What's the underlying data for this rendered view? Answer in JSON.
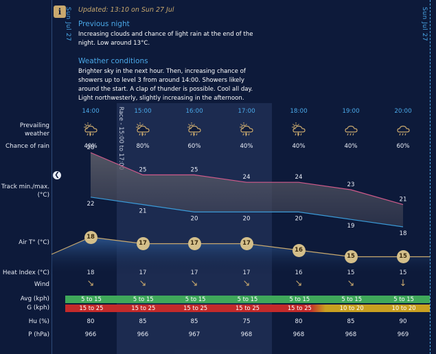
{
  "header": {
    "info_icon": "info-icon",
    "updated": "Updated: 13:10 on Sun 27 Jul",
    "date_left": "Sun Jul 27",
    "date_right": "Sun Jul 27"
  },
  "previous_night": {
    "title": "Previous night",
    "text": "Increasing clouds and chance of light rain at the end of the night. Low around 13°C."
  },
  "weather_conditions": {
    "title": "Weather conditions",
    "text": "Brighter sky in the next hour. Then, increasing chance of showers up to level 3 from around 14:00. Showers likely around the start. A clap of thunder is possible. Cool all day. Light northwesterly, slightly increasing in the afternoon."
  },
  "race_label": "Race - 15:00 to 17:00",
  "labels": {
    "prevailing_weather": "Prevailing weather",
    "chance_of_rain": "Chance of rain",
    "track": "Track min./max. (°C)",
    "air": "Air T° (°C)",
    "heat_index": "Heat Index (°C)",
    "wind": "Wind",
    "avg": "Avg (kph)",
    "gust": "G (kph)",
    "hu": "Hu (%)",
    "p": "P (hPa)"
  },
  "hours": [
    "14:00",
    "15:00",
    "16:00",
    "17:00",
    "18:00",
    "19:00",
    "20:00"
  ],
  "weather_icons": [
    "thunder-rain-icon",
    "thunder-rain-icon",
    "thunder-rain-icon",
    "thunder-rain-icon",
    "thunder-rain-icon",
    "cloud-rain-icon",
    "cloud-rain-icon"
  ],
  "chance_of_rain": [
    "40%",
    "80%",
    "60%",
    "40%",
    "40%",
    "40%",
    "60%"
  ],
  "track_max": [
    28,
    25,
    25,
    24,
    24,
    23,
    21
  ],
  "track_min": [
    22,
    21,
    20,
    20,
    20,
    19,
    18
  ],
  "air_temp": [
    18,
    17,
    17,
    17,
    16,
    15,
    15
  ],
  "heat_index": [
    "18",
    "17",
    "17",
    "17",
    "16",
    "15",
    "15"
  ],
  "wind_icons": [
    "arrow-down-right-icon",
    "arrow-down-right-icon",
    "arrow-down-right-icon",
    "arrow-down-right-icon",
    "arrow-down-right-icon",
    "arrow-down-right-icon",
    "arrow-down-icon"
  ],
  "wind_avg": [
    "5 to 15",
    "5 to 15",
    "5 to 15",
    "5 to 15",
    "5 to 15",
    "5 to 15",
    "5 to 15"
  ],
  "wind_gust": [
    "15 to 25",
    "15 to 25",
    "15 to 25",
    "15 to 25",
    "15 to 25",
    "10 to 20",
    "10 to 20"
  ],
  "humidity": [
    "80",
    "85",
    "85",
    "75",
    "80",
    "85",
    "90"
  ],
  "pressure": [
    "966",
    "966",
    "967",
    "968",
    "968",
    "968",
    "969"
  ],
  "colors": {
    "background": "#0d1a3a",
    "accent_blue": "#4aa8e8",
    "gold": "#c9a96e",
    "avg_green": "#3fa85a",
    "gust_red": "#c42a2a",
    "gust_amber": "#c9a020",
    "track_max_line": "#d05a8a",
    "track_min_line": "#3a9ad8"
  }
}
